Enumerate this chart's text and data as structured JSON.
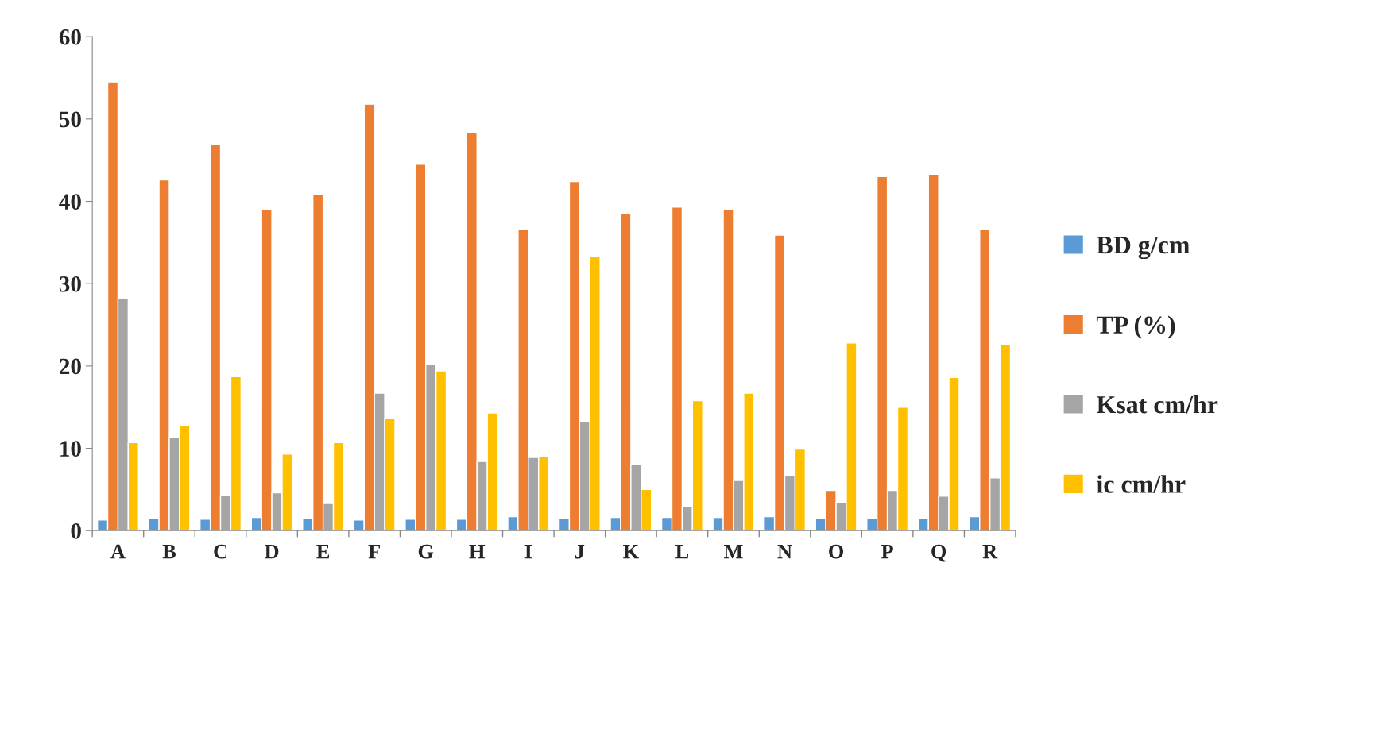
{
  "chart_data": {
    "type": "bar",
    "categories": [
      "A",
      "B",
      "C",
      "D",
      "E",
      "F",
      "G",
      "H",
      "I",
      "J",
      "K",
      "L",
      "M",
      "N",
      "O",
      "P",
      "Q",
      "R"
    ],
    "series": [
      {
        "name": "BD g/cm",
        "color": "#5b9bd5",
        "values": [
          1.3,
          1.5,
          1.4,
          1.6,
          1.5,
          1.3,
          1.4,
          1.4,
          1.7,
          1.5,
          1.6,
          1.6,
          1.6,
          1.7,
          1.5,
          1.5,
          1.5,
          1.7
        ]
      },
      {
        "name": "TP (%)",
        "color": "#ed7d31",
        "values": [
          54.5,
          42.6,
          46.9,
          39.0,
          40.9,
          51.8,
          44.5,
          48.4,
          36.6,
          42.4,
          38.5,
          39.3,
          39.0,
          35.9,
          4.9,
          43.0,
          43.3,
          36.6
        ]
      },
      {
        "name": "Ksat cm/hr",
        "color": "#a5a5a5",
        "values": [
          28.2,
          11.3,
          4.3,
          4.6,
          3.3,
          16.7,
          20.2,
          8.4,
          8.9,
          13.2,
          8.0,
          2.9,
          6.1,
          6.7,
          3.4,
          4.9,
          4.2,
          6.4
        ]
      },
      {
        "name": "ic cm/hr",
        "color": "#ffc000",
        "values": [
          10.7,
          12.8,
          18.7,
          9.3,
          10.7,
          13.6,
          19.4,
          14.3,
          9.0,
          33.3,
          5.0,
          15.8,
          16.7,
          9.9,
          22.8,
          15.0,
          18.6,
          22.6
        ]
      }
    ],
    "ylim": [
      0,
      60
    ],
    "yticks": [
      0,
      10,
      20,
      30,
      40,
      50,
      60
    ],
    "grid": false,
    "legend": "right"
  }
}
